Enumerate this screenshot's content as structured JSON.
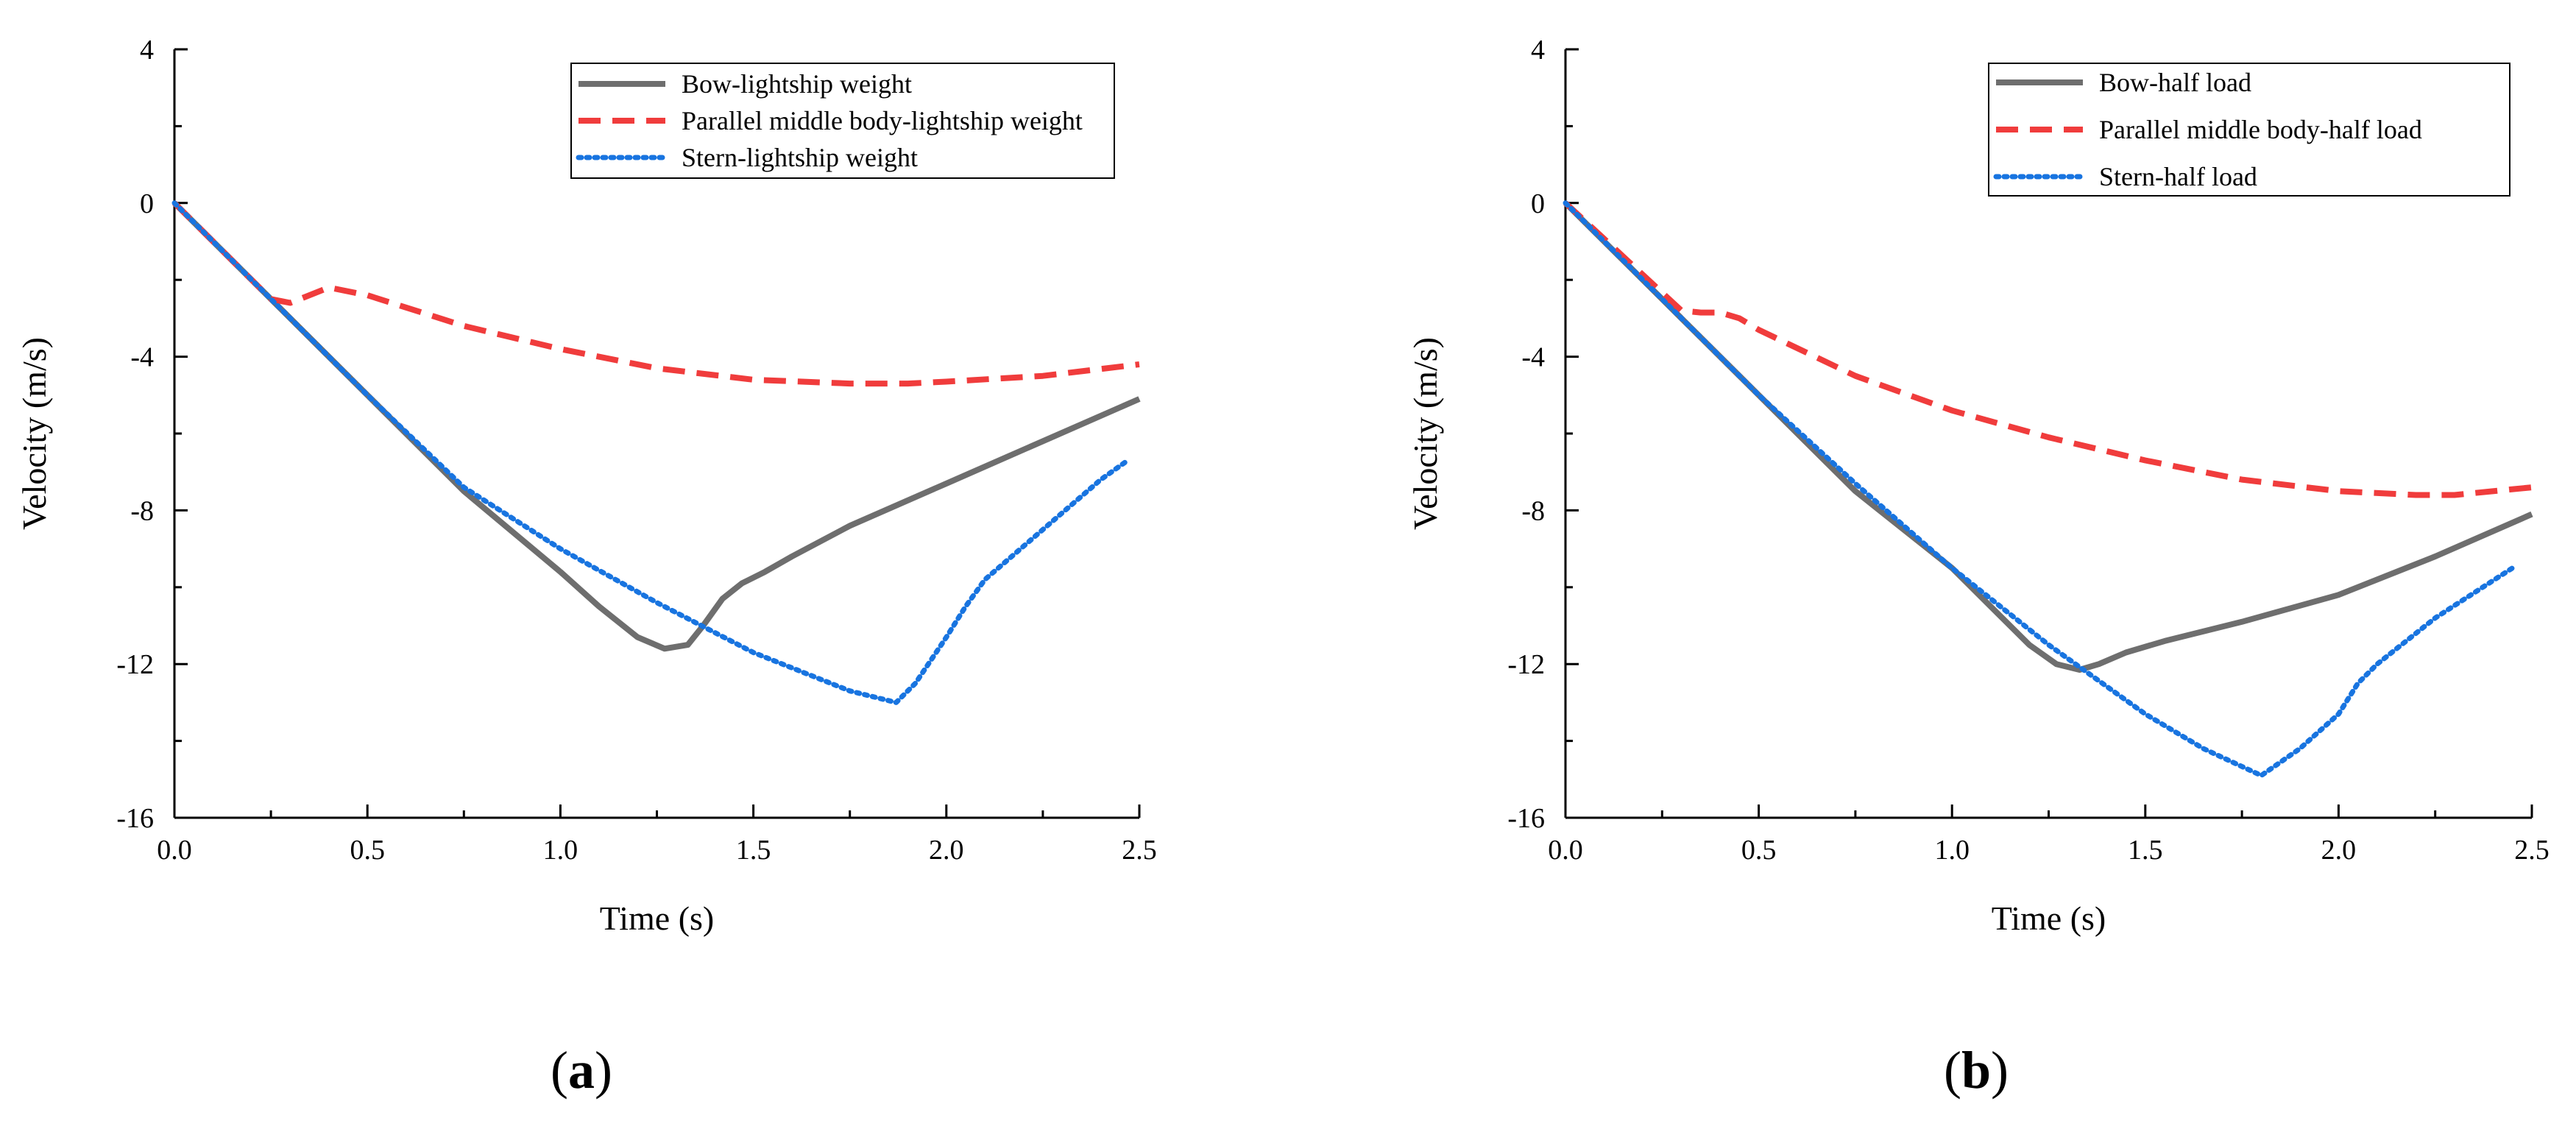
{
  "chart_data": [
    {
      "type": "line",
      "panel_label": "a",
      "xlabel": "Time (s)",
      "ylabel": "Velocity (m/s)",
      "xlim": [
        0.0,
        2.5
      ],
      "ylim": [
        -16,
        4
      ],
      "xticks": [
        0.0,
        0.5,
        1.0,
        1.5,
        2.0,
        2.5
      ],
      "xtick_labels": [
        "0.0",
        "0.5",
        "1.0",
        "1.5",
        "2.0",
        "2.5"
      ],
      "yticks": [
        -16,
        -12,
        -8,
        -4,
        0,
        4
      ],
      "ytick_labels": [
        "-16",
        "-12",
        "-8",
        "-4",
        "0",
        "4"
      ],
      "legend_position": "top-right",
      "series": [
        {
          "name": "Bow-lightship weight",
          "color": "#6e6e6e",
          "style": "solid",
          "x": [
            0,
            0.25,
            0.5,
            0.75,
            1.0,
            1.1,
            1.2,
            1.27,
            1.33,
            1.37,
            1.42,
            1.47,
            1.53,
            1.6,
            1.75,
            2.0,
            2.25,
            2.5
          ],
          "y": [
            0,
            -2.5,
            -5.0,
            -7.5,
            -9.6,
            -10.5,
            -11.3,
            -11.6,
            -11.5,
            -11.0,
            -10.3,
            -9.9,
            -9.6,
            -9.2,
            -8.4,
            -7.3,
            -6.2,
            -5.1
          ]
        },
        {
          "name": "Parallel middle body-lightship weight",
          "color": "#f03c3c",
          "style": "dashed",
          "x": [
            0,
            0.1,
            0.2,
            0.25,
            0.3,
            0.4,
            0.5,
            0.75,
            1.0,
            1.25,
            1.5,
            1.75,
            1.9,
            2.0,
            2.25,
            2.5
          ],
          "y": [
            0,
            -1.0,
            -2.0,
            -2.5,
            -2.6,
            -2.2,
            -2.4,
            -3.2,
            -3.8,
            -4.3,
            -4.6,
            -4.7,
            -4.7,
            -4.65,
            -4.5,
            -4.2
          ]
        },
        {
          "name": "Stern-lightship weight",
          "color": "#1874e0",
          "style": "dotted",
          "x": [
            0,
            0.25,
            0.5,
            0.75,
            1.0,
            1.25,
            1.5,
            1.75,
            1.87,
            1.92,
            2.0,
            2.05,
            2.1,
            2.25,
            2.4,
            2.47
          ],
          "y": [
            0,
            -2.5,
            -5.0,
            -7.4,
            -9.0,
            -10.4,
            -11.7,
            -12.7,
            -13.0,
            -12.5,
            -11.3,
            -10.5,
            -9.8,
            -8.5,
            -7.2,
            -6.7
          ]
        }
      ]
    },
    {
      "type": "line",
      "panel_label": "b",
      "xlabel": "Time (s)",
      "ylabel": "Velocity (m/s)",
      "xlim": [
        0.0,
        2.5
      ],
      "ylim": [
        -16,
        4
      ],
      "xticks": [
        0.0,
        0.5,
        1.0,
        1.5,
        2.0,
        2.5
      ],
      "xtick_labels": [
        "0.0",
        "0.5",
        "1.0",
        "1.5",
        "2.0",
        "2.5"
      ],
      "yticks": [
        -16,
        -12,
        -8,
        -4,
        0,
        4
      ],
      "ytick_labels": [
        "-16",
        "-12",
        "-8",
        "-4",
        "0",
        "4"
      ],
      "legend_position": "top-right",
      "series": [
        {
          "name": "Bow-half load",
          "color": "#6e6e6e",
          "style": "solid",
          "x": [
            0,
            0.25,
            0.5,
            0.75,
            1.0,
            1.1,
            1.2,
            1.27,
            1.33,
            1.38,
            1.45,
            1.55,
            1.75,
            2.0,
            2.25,
            2.5
          ],
          "y": [
            0,
            -2.5,
            -5.0,
            -7.5,
            -9.5,
            -10.5,
            -11.5,
            -12.0,
            -12.15,
            -12.0,
            -11.7,
            -11.4,
            -10.9,
            -10.2,
            -9.2,
            -8.1
          ]
        },
        {
          "name": "Parallel middle body-half load",
          "color": "#f03c3c",
          "style": "dashed",
          "x": [
            0,
            0.15,
            0.3,
            0.35,
            0.4,
            0.45,
            0.5,
            0.75,
            1.0,
            1.25,
            1.5,
            1.75,
            2.0,
            2.2,
            2.3,
            2.5
          ],
          "y": [
            0,
            -1.4,
            -2.8,
            -2.85,
            -2.85,
            -3.0,
            -3.3,
            -4.5,
            -5.4,
            -6.1,
            -6.7,
            -7.2,
            -7.5,
            -7.6,
            -7.6,
            -7.4
          ]
        },
        {
          "name": "Stern-half load",
          "color": "#1874e0",
          "style": "dotted",
          "x": [
            0,
            0.25,
            0.5,
            0.75,
            1.0,
            1.25,
            1.5,
            1.65,
            1.8,
            1.9,
            2.0,
            2.05,
            2.1,
            2.25,
            2.45
          ],
          "y": [
            0,
            -2.5,
            -5.0,
            -7.3,
            -9.5,
            -11.5,
            -13.3,
            -14.2,
            -14.9,
            -14.2,
            -13.3,
            -12.5,
            -12.0,
            -10.8,
            -9.5
          ]
        }
      ]
    }
  ]
}
